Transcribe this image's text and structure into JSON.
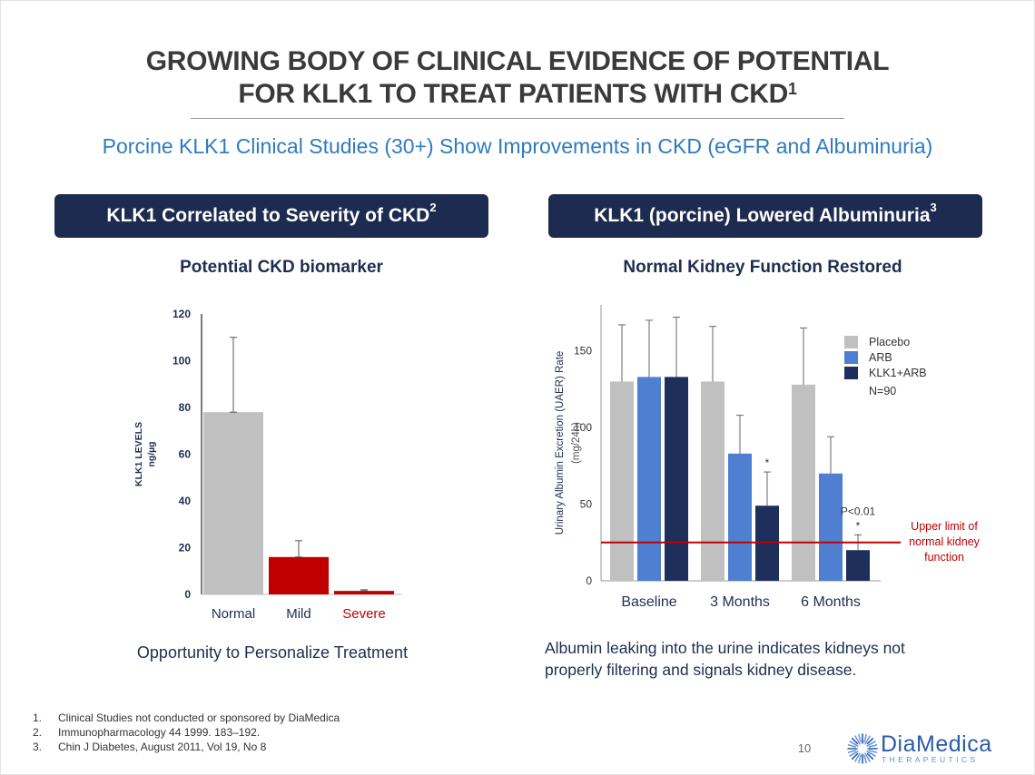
{
  "title": {
    "line1": "GROWING BODY OF CLINICAL EVIDENCE OF POTENTIAL",
    "line2": "FOR KLK1 TO TREAT PATIENTS WITH CKD",
    "line2_sup": "1"
  },
  "subtitle": "Porcine KLK1 Clinical Studies (30+) Show Improvements in CKD (eGFR and Albuminuria)",
  "left_panel": {
    "banner": "KLK1 Correlated to Severity of CKD",
    "banner_sup": "2",
    "heading": "Potential CKD biomarker",
    "caption": "Opportunity to Personalize Treatment"
  },
  "right_panel": {
    "banner": "KLK1 (porcine) Lowered Albuminuria",
    "banner_sup": "3",
    "heading": "Normal Kidney Function Restored",
    "caption_line1": "Albumin leaking into the urine indicates kidneys not",
    "caption_line2": "properly filtering and signals kidney disease."
  },
  "footnotes": [
    {
      "num": "1.",
      "text": "Clinical Studies not conducted or sponsored by DiaMedica"
    },
    {
      "num": "2.",
      "text": "Immunopharmacology 44 1999. 183–192."
    },
    {
      "num": "3.",
      "text": "Chin J Diabetes, August 2011, Vol 19, No 8"
    }
  ],
  "page_number": "10",
  "logo": {
    "name": "DiaMedica",
    "sub": "THERAPEUTICS"
  },
  "colors": {
    "navy": "#1c2b4f",
    "accent_blue": "#2f7bbf",
    "gray_bar": "#c0c0c0",
    "red_bar": "#c00000",
    "arb_blue": "#4f7fd1",
    "klk1_navy": "#1d2f5a",
    "limit_red": "#c00000"
  },
  "chart_data": [
    {
      "type": "bar",
      "ylabel_line1": "KLK1 LEVELS",
      "ylabel_line2": "ng/µg",
      "categories": [
        "Normal",
        "Mild",
        "Severe"
      ],
      "values": [
        78,
        16,
        1.5
      ],
      "error_upper": [
        110,
        23,
        2
      ],
      "bar_colors": [
        "#c0c0c0",
        "#c00000",
        "#c00000"
      ],
      "category_label_colors": [
        "#1f2d4e",
        "#1f2d4e",
        "#c00000"
      ],
      "ylim": [
        0,
        120
      ],
      "yticks": [
        "0",
        "20",
        "40",
        "60",
        "80",
        "100",
        "120"
      ]
    },
    {
      "type": "bar",
      "ylabel_line1": "Urinary Albumin Excretion (UAER) Rate",
      "ylabel_line2": "(mg/24h)",
      "categories": [
        "Baseline",
        "3 Months",
        "6 Months"
      ],
      "series": [
        {
          "name": "Placebo",
          "color": "#c0c0c0",
          "values": [
            130,
            130,
            128
          ],
          "error_upper": [
            167,
            166,
            165
          ]
        },
        {
          "name": "ARB",
          "color": "#4f7fd1",
          "values": [
            133,
            83,
            70
          ],
          "error_upper": [
            170,
            108,
            94
          ]
        },
        {
          "name": "KLK1+ARB",
          "color": "#1d2f5a",
          "values": [
            133,
            49,
            20
          ],
          "error_upper": [
            172,
            71,
            30
          ]
        }
      ],
      "legend_note": "N=90",
      "significance_markers": [
        "*",
        "*"
      ],
      "p_value_label": "P<0.01",
      "reference_line": {
        "value": 25,
        "label_line1": "Upper limit of",
        "label_line2": "normal kidney",
        "label_line3": "function"
      },
      "ylim": [
        0,
        180
      ],
      "yticks": [
        "0",
        "50",
        "100",
        "150"
      ]
    }
  ]
}
